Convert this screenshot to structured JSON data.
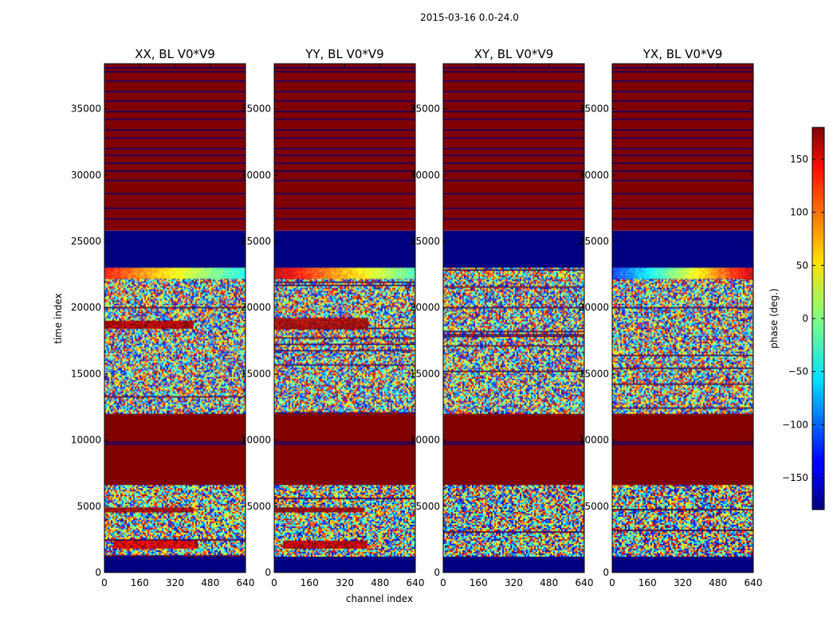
{
  "figure": {
    "suptitle": "2015-03-16 0.0-24.0"
  },
  "chart_data": {
    "type": "heatmap",
    "colormap": "jet",
    "xlabel": "channel index",
    "ylabel": "time index",
    "xlim": [
      0,
      640
    ],
    "ylim": [
      0,
      38400
    ],
    "x_ticks": [
      0,
      160,
      320,
      480,
      640
    ],
    "y_ticks": [
      0,
      5000,
      10000,
      15000,
      20000,
      25000,
      30000,
      35000
    ],
    "colorbar": {
      "label": "phase (deg.)",
      "range": [
        -180,
        180
      ],
      "ticks": [
        150,
        100,
        50,
        0,
        -50,
        -100,
        -150
      ],
      "tick_labels": [
        "150",
        "100",
        "50",
        "0",
        "−50",
        "−100",
        "−150"
      ]
    },
    "panels": [
      {
        "title": "XX, BL V0*V9",
        "bands": [
          {
            "y0": 0,
            "y1": 1200,
            "kind": "solid",
            "phase": -180
          },
          {
            "y0": 1200,
            "y1": 6600,
            "kind": "noise",
            "seed": 11,
            "mean": 0,
            "spread": 160
          },
          {
            "y0": 1800,
            "y1": 2400,
            "kind": "feature",
            "x0": 40,
            "x1": 420,
            "phase": 150
          },
          {
            "y0": 4600,
            "y1": 4900,
            "kind": "feature",
            "x0": 0,
            "x1": 400,
            "phase": 170
          },
          {
            "y0": 6600,
            "y1": 12000,
            "kind": "solid",
            "phase": 180
          },
          {
            "y0": 12000,
            "y1": 22200,
            "kind": "noise",
            "seed": 23,
            "mean": 0,
            "spread": 170
          },
          {
            "y0": 18400,
            "y1": 19000,
            "kind": "feature",
            "x0": 0,
            "x1": 400,
            "phase": 165
          },
          {
            "y0": 22200,
            "y1": 23000,
            "kind": "gradient",
            "from": 130,
            "to": -40
          },
          {
            "y0": 23000,
            "y1": 25800,
            "kind": "solid",
            "phase": -180
          },
          {
            "y0": 25800,
            "y1": 38400,
            "kind": "solid",
            "phase": 180
          }
        ]
      },
      {
        "title": "YY, BL V0*V9",
        "bands": [
          {
            "y0": 0,
            "y1": 1200,
            "kind": "solid",
            "phase": -180
          },
          {
            "y0": 1200,
            "y1": 6600,
            "kind": "noise",
            "seed": 37,
            "mean": 0,
            "spread": 160
          },
          {
            "y0": 1800,
            "y1": 2400,
            "kind": "feature",
            "x0": 40,
            "x1": 420,
            "phase": 160
          },
          {
            "y0": 4600,
            "y1": 4900,
            "kind": "feature",
            "x0": 0,
            "x1": 400,
            "phase": 175
          },
          {
            "y0": 6600,
            "y1": 12000,
            "kind": "solid",
            "phase": 180
          },
          {
            "y0": 12000,
            "y1": 22200,
            "kind": "noise",
            "seed": 41,
            "mean": 0,
            "spread": 170
          },
          {
            "y0": 18400,
            "y1": 19200,
            "kind": "feature",
            "x0": 0,
            "x1": 420,
            "phase": 170
          },
          {
            "y0": 22200,
            "y1": 23000,
            "kind": "gradient",
            "from": 160,
            "to": -20
          },
          {
            "y0": 23000,
            "y1": 25800,
            "kind": "solid",
            "phase": -180
          },
          {
            "y0": 25800,
            "y1": 38400,
            "kind": "solid",
            "phase": 180
          }
        ]
      },
      {
        "title": "XY, BL V0*V9",
        "bands": [
          {
            "y0": 0,
            "y1": 1200,
            "kind": "solid",
            "phase": -180
          },
          {
            "y0": 1200,
            "y1": 6600,
            "kind": "noise",
            "seed": 53,
            "mean": 0,
            "spread": 175
          },
          {
            "y0": 6600,
            "y1": 12000,
            "kind": "solid",
            "phase": 180
          },
          {
            "y0": 12000,
            "y1": 22200,
            "kind": "noise",
            "seed": 67,
            "mean": 0,
            "spread": 175
          },
          {
            "y0": 22200,
            "y1": 23000,
            "kind": "noise",
            "seed": 71,
            "mean": 20,
            "spread": 150
          },
          {
            "y0": 23000,
            "y1": 25800,
            "kind": "solid",
            "phase": -180
          },
          {
            "y0": 25800,
            "y1": 38400,
            "kind": "solid",
            "phase": 180
          }
        ]
      },
      {
        "title": "YX, BL V0*V9",
        "bands": [
          {
            "y0": 0,
            "y1": 1200,
            "kind": "solid",
            "phase": -180
          },
          {
            "y0": 1200,
            "y1": 6600,
            "kind": "noise",
            "seed": 83,
            "mean": 0,
            "spread": 175
          },
          {
            "y0": 6600,
            "y1": 12000,
            "kind": "solid",
            "phase": 180
          },
          {
            "y0": 12000,
            "y1": 22200,
            "kind": "noise",
            "seed": 97,
            "mean": 0,
            "spread": 175
          },
          {
            "y0": 22200,
            "y1": 23000,
            "kind": "gradient",
            "from": -120,
            "to": 160
          },
          {
            "y0": 23000,
            "y1": 25800,
            "kind": "solid",
            "phase": -180
          },
          {
            "y0": 25800,
            "y1": 38400,
            "kind": "solid",
            "phase": 180
          }
        ]
      }
    ],
    "flag_lines_upper": [
      26700,
      27500,
      28600,
      29600,
      30300,
      30900,
      31500,
      32000,
      32800,
      33400,
      34200,
      34800,
      35600,
      36300,
      37100,
      37800,
      38100
    ],
    "flag_lines_middle": [
      9700,
      9850
    ]
  }
}
